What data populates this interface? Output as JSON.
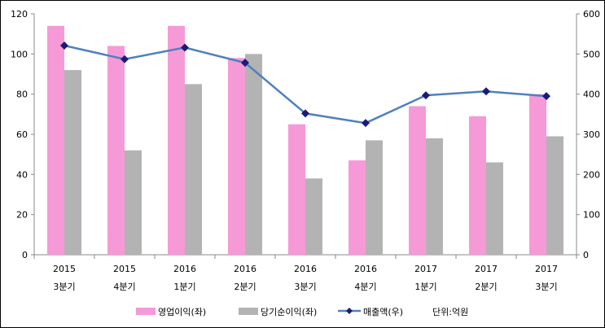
{
  "chart_data": {
    "type": "bar",
    "categories": [
      [
        "2015",
        "3분기"
      ],
      [
        "2015",
        "4분기"
      ],
      [
        "2016",
        "1분기"
      ],
      [
        "2016",
        "2분기"
      ],
      [
        "2016",
        "3분기"
      ],
      [
        "2016",
        "4분기"
      ],
      [
        "2017",
        "1분기"
      ],
      [
        "2017",
        "2분기"
      ],
      [
        "2017",
        "3분기"
      ]
    ],
    "series": [
      {
        "name": "영업이익(좌)",
        "type": "bar",
        "axis": "left",
        "color": "#f59ad6",
        "values": [
          114,
          104,
          114,
          98,
          65,
          47,
          74,
          69,
          80
        ]
      },
      {
        "name": "당기순이익(좌)",
        "type": "bar",
        "axis": "left",
        "color": "#b3b3b3",
        "values": [
          92,
          52,
          85,
          100,
          38,
          57,
          58,
          46,
          59
        ]
      },
      {
        "name": "매출액(우)",
        "type": "line",
        "axis": "right",
        "color": "#4f81bd",
        "marker_color": "#1a1a7a",
        "values": [
          521,
          487,
          516,
          478,
          352,
          328,
          397,
          407,
          395
        ]
      }
    ],
    "ylim_left": [
      0,
      120
    ],
    "yticks_left": [
      0,
      20,
      40,
      60,
      80,
      100,
      120
    ],
    "ylim_right": [
      0,
      600
    ],
    "yticks_right": [
      0,
      100,
      200,
      300,
      400,
      500,
      600
    ],
    "unit_note": "단위:억원",
    "legend_position": "bottom",
    "grid": false
  }
}
